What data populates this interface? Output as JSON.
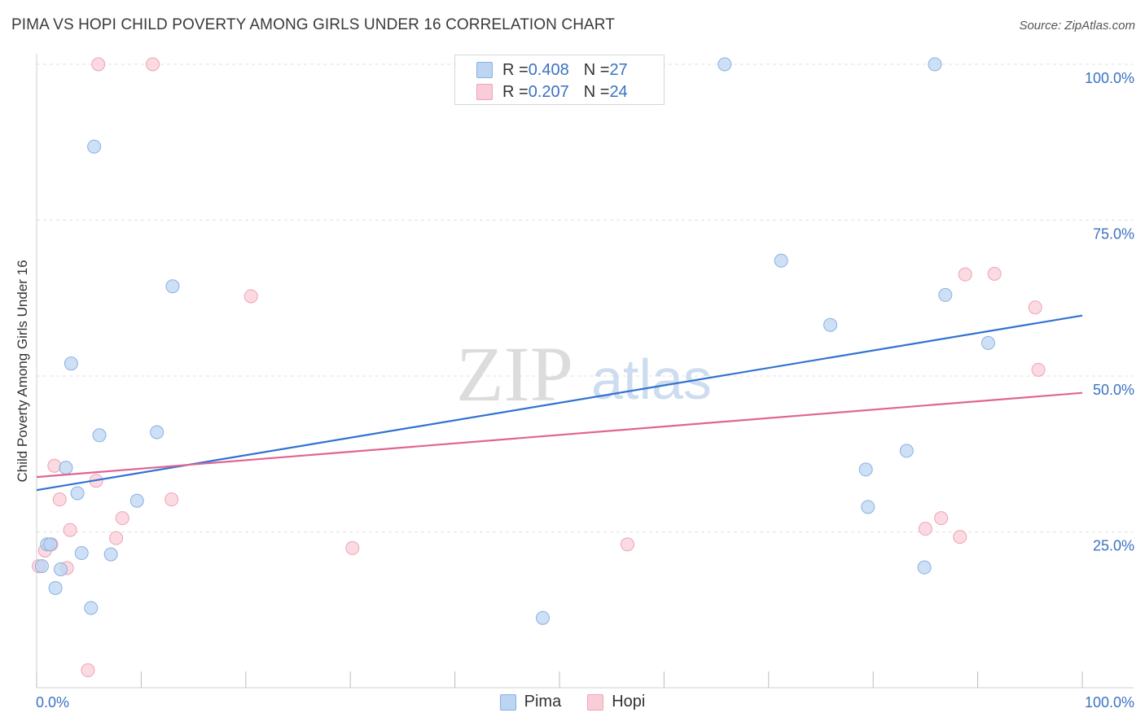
{
  "header": {
    "title": "PIMA VS HOPI CHILD POVERTY AMONG GIRLS UNDER 16 CORRELATION CHART",
    "source": "Source: ZipAtlas.com"
  },
  "watermark": {
    "zip": "ZIP",
    "atlas": "atlas"
  },
  "legend": {
    "pima": {
      "r_label": "R = ",
      "r_value": "0.408",
      "n_label": "N = ",
      "n_value": "27"
    },
    "hopi": {
      "r_label": "R = ",
      "r_value": "0.207",
      "n_label": "N = ",
      "n_value": "24"
    }
  },
  "colors": {
    "pima_fill": "#bcd5f3",
    "pima_stroke": "#8ab0e3",
    "pima_line": "#2f73d0",
    "hopi_fill": "#f9cdd8",
    "hopi_stroke": "#eda3b7",
    "hopi_line": "#e06592",
    "axis_label": "#3b72c4"
  },
  "chart_data": {
    "type": "scatter",
    "title": "PIMA VS HOPI CHILD POVERTY AMONG GIRLS UNDER 16 CORRELATION CHART",
    "xlabel": "",
    "ylabel": "Child Poverty Among Girls Under 16",
    "xlim": [
      0,
      100
    ],
    "ylim": [
      0,
      100
    ],
    "x_tick_labels": [
      "0.0%",
      "100.0%"
    ],
    "y_ticks": [
      25,
      50,
      75,
      100
    ],
    "y_tick_labels": [
      "25.0%",
      "50.0%",
      "75.0%",
      "100.0%"
    ],
    "grid": true,
    "legend_position": "top-center",
    "series": [
      {
        "name": "Pima",
        "r": 0.408,
        "n": 27,
        "trend": {
          "x": [
            0,
            100
          ],
          "y": [
            31.7,
            59.7
          ]
        },
        "points": [
          {
            "x": 0.5,
            "y": 19.5
          },
          {
            "x": 1.0,
            "y": 23.0
          },
          {
            "x": 1.3,
            "y": 23.0
          },
          {
            "x": 1.8,
            "y": 16.0
          },
          {
            "x": 2.3,
            "y": 19.0
          },
          {
            "x": 2.8,
            "y": 35.3
          },
          {
            "x": 3.3,
            "y": 52.0
          },
          {
            "x": 3.9,
            "y": 31.2
          },
          {
            "x": 4.3,
            "y": 21.6
          },
          {
            "x": 5.2,
            "y": 12.8
          },
          {
            "x": 5.5,
            "y": 86.8
          },
          {
            "x": 6.0,
            "y": 40.5
          },
          {
            "x": 7.1,
            "y": 21.4
          },
          {
            "x": 9.6,
            "y": 30.0
          },
          {
            "x": 11.5,
            "y": 41.0
          },
          {
            "x": 13.0,
            "y": 64.4
          },
          {
            "x": 48.4,
            "y": 11.2
          },
          {
            "x": 65.8,
            "y": 100.0
          },
          {
            "x": 71.2,
            "y": 68.5
          },
          {
            "x": 75.9,
            "y": 58.2
          },
          {
            "x": 79.3,
            "y": 35.0
          },
          {
            "x": 79.5,
            "y": 29.0
          },
          {
            "x": 83.2,
            "y": 38.0
          },
          {
            "x": 85.9,
            "y": 100.0
          },
          {
            "x": 84.9,
            "y": 19.3
          },
          {
            "x": 86.9,
            "y": 63.0
          },
          {
            "x": 91.0,
            "y": 55.3
          }
        ]
      },
      {
        "name": "Hopi",
        "r": 0.207,
        "n": 24,
        "trend": {
          "x": [
            0,
            100
          ],
          "y": [
            33.8,
            47.3
          ]
        },
        "points": [
          {
            "x": 0.2,
            "y": 19.5
          },
          {
            "x": 0.8,
            "y": 22.0
          },
          {
            "x": 1.4,
            "y": 23.0
          },
          {
            "x": 1.7,
            "y": 35.6
          },
          {
            "x": 2.2,
            "y": 30.2
          },
          {
            "x": 2.9,
            "y": 19.2
          },
          {
            "x": 3.2,
            "y": 25.3
          },
          {
            "x": 4.9,
            "y": 2.8
          },
          {
            "x": 5.7,
            "y": 33.2
          },
          {
            "x": 5.9,
            "y": 100.0
          },
          {
            "x": 7.6,
            "y": 24.0
          },
          {
            "x": 8.2,
            "y": 27.2
          },
          {
            "x": 11.1,
            "y": 100.0
          },
          {
            "x": 12.9,
            "y": 30.2
          },
          {
            "x": 20.5,
            "y": 62.8
          },
          {
            "x": 30.2,
            "y": 22.4
          },
          {
            "x": 56.5,
            "y": 23.0
          },
          {
            "x": 85.0,
            "y": 25.5
          },
          {
            "x": 86.5,
            "y": 27.2
          },
          {
            "x": 88.3,
            "y": 24.2
          },
          {
            "x": 88.8,
            "y": 66.3
          },
          {
            "x": 91.6,
            "y": 66.4
          },
          {
            "x": 95.5,
            "y": 61.0
          },
          {
            "x": 95.8,
            "y": 51.0
          }
        ]
      }
    ]
  }
}
